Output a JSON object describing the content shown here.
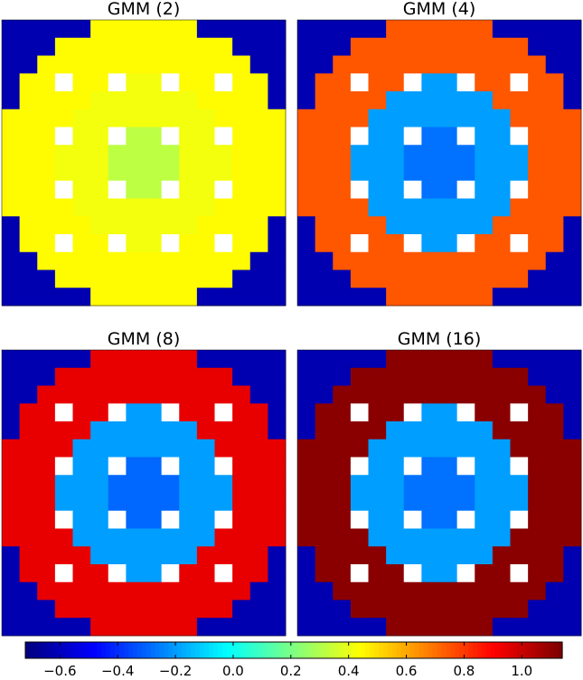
{
  "chart_data": {
    "type": "heatmap",
    "colormap": "jet",
    "panels": [
      {
        "title": "GMM (2)",
        "tiers": {
          "outer": -0.63,
          "ring": 0.45,
          "inner": 0.42,
          "center": 0.32
        }
      },
      {
        "title": "GMM (4)",
        "tiers": {
          "outer": -0.63,
          "ring": 0.75,
          "inner": -0.2,
          "center": -0.28
        }
      },
      {
        "title": "GMM (8)",
        "tiers": {
          "outer": -0.63,
          "ring": 0.95,
          "inner": -0.2,
          "center": -0.3
        }
      },
      {
        "title": "GMM (16)",
        "tiers": {
          "outer": -0.63,
          "ring": 1.12,
          "inner": -0.2,
          "center": -0.28
        }
      }
    ],
    "colorbar": {
      "range": [
        -0.72,
        1.14
      ],
      "ticks": [
        -0.6,
        -0.4,
        -0.2,
        0.0,
        0.2,
        0.4,
        0.6,
        0.8,
        1.0
      ],
      "tick_labels": [
        "−0.6",
        "−0.4",
        "−0.2",
        "0.0",
        "0.2",
        "0.4",
        "0.6",
        "0.8",
        "1.0"
      ]
    }
  }
}
